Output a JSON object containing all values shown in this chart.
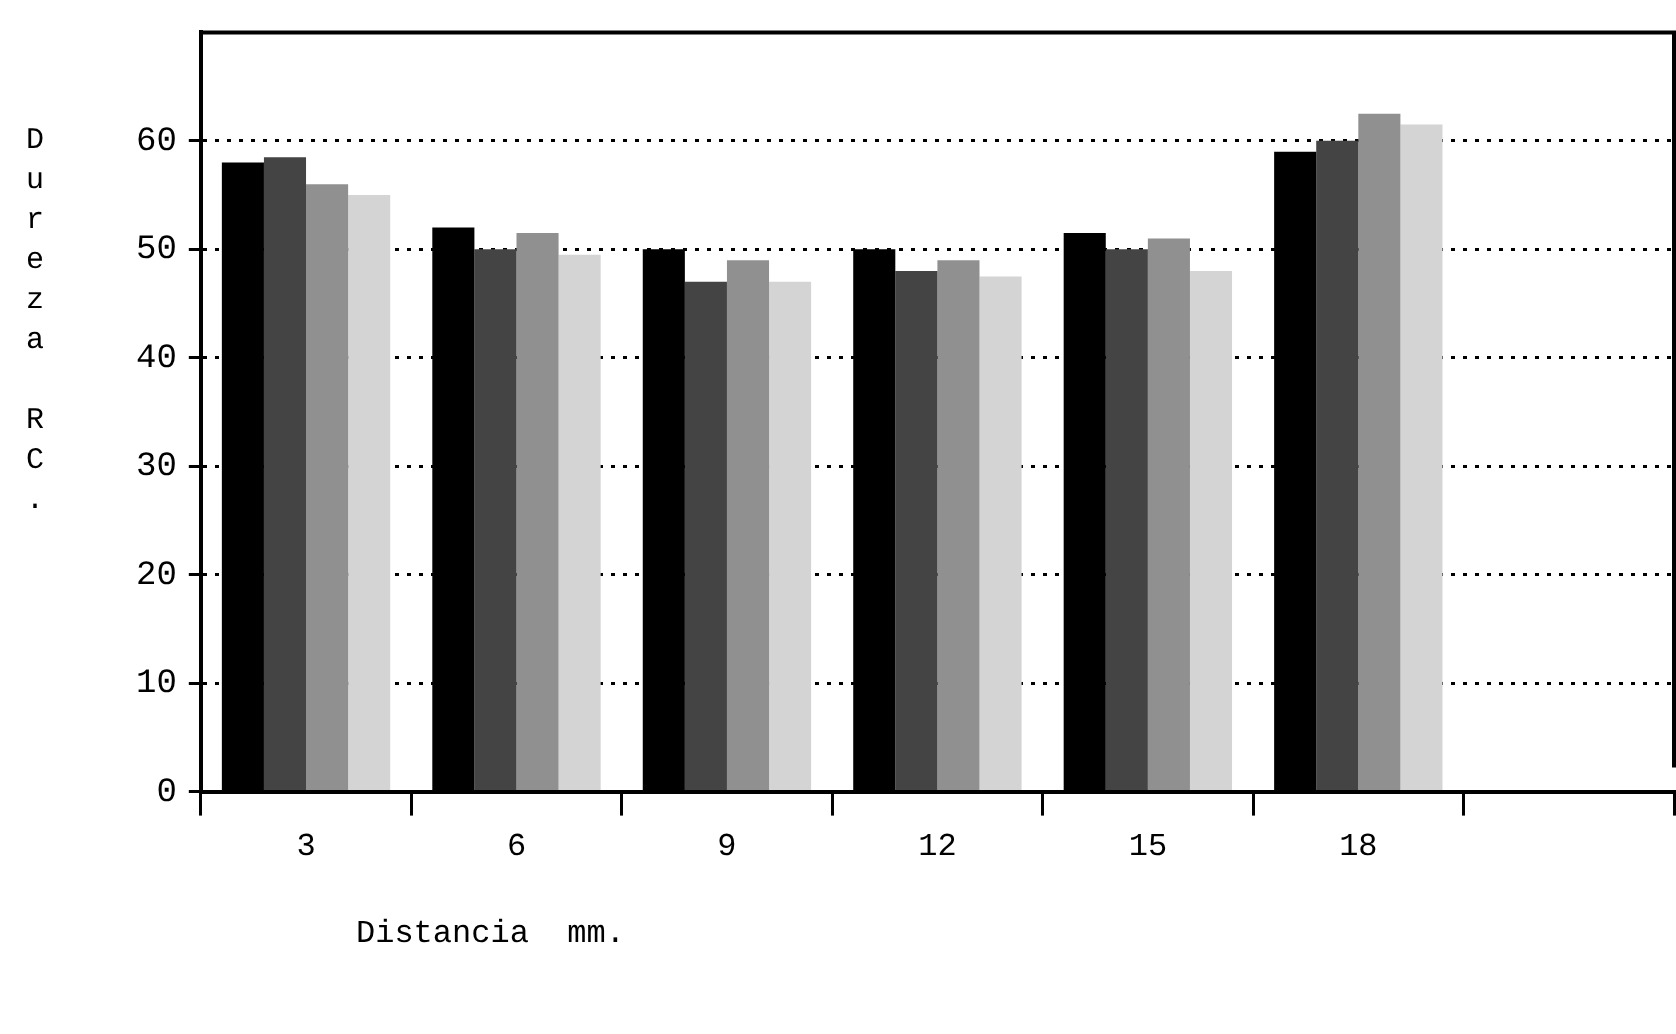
{
  "chart_data": {
    "type": "bar",
    "xlabel": "Distancia  mm.",
    "ylabel": "Dureza RC.",
    "categories": [
      "3",
      "6",
      "9",
      "12",
      "15",
      "18",
      null
    ],
    "series": [
      {
        "color": "#000000",
        "values": [
          58,
          52,
          50,
          50,
          51.5,
          59,
          null
        ]
      },
      {
        "color": "#444444",
        "values": [
          58.5,
          50,
          47,
          48,
          50,
          60,
          null
        ]
      },
      {
        "color": "#909090",
        "values": [
          56,
          51.5,
          49,
          49,
          51,
          62.5,
          null
        ]
      },
      {
        "color": "#d4d4d4",
        "values": [
          55,
          49.5,
          47,
          47.5,
          48,
          61.5,
          null
        ]
      }
    ],
    "ylim": [
      0,
      70
    ],
    "yticks": [
      0,
      10,
      20,
      30,
      40,
      50,
      60
    ],
    "grid": "y",
    "legend": false
  }
}
